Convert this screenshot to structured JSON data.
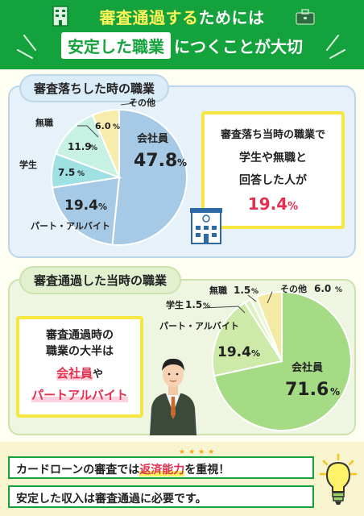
{
  "header": {
    "title_highlight": "審査通過する",
    "title_line1_rest": "ためには",
    "title_box": "安定した職業",
    "title_line2_rest": "につくことが大切"
  },
  "section1": {
    "title": "審査落ちした時の職業",
    "chart_data": {
      "type": "pie",
      "slices": [
        {
          "label": "会社員",
          "value": 47.8,
          "color": "#a6c9e6"
        },
        {
          "label": "パート・アルバイト",
          "value": 19.4,
          "color": "#a6c9e6"
        },
        {
          "label": "学生",
          "value": 7.5,
          "color": "#9fe0e3"
        },
        {
          "label": "無職",
          "value": 11.9,
          "color": "#c7f2e3"
        },
        {
          "label": "その他",
          "value": 6.0,
          "color": "#f7ecac"
        }
      ],
      "labels": {
        "kaishain": "会社員",
        "kaishain_val": "47.8",
        "part": "パート・アルバイト",
        "part_val": "19.4",
        "student": "学生",
        "student_val": "7.5",
        "mushoku": "無職",
        "mushoku_val": "11.9",
        "other": "その他",
        "other_val": "6.0",
        "unit": "%"
      }
    },
    "callout": {
      "line1": "審査落ち当時の職業で",
      "line2": "学生や無職と",
      "line3": "回答した人が",
      "value": "19.4",
      "unit": "%"
    }
  },
  "section2": {
    "title": "審査通過した当時の職業",
    "chart_data": {
      "type": "pie",
      "slices": [
        {
          "label": "会社員",
          "value": 71.6,
          "color": "#a6db86"
        },
        {
          "label": "パート・アルバイト",
          "value": 19.4,
          "color": "#cdeaa8"
        },
        {
          "label": "学生",
          "value": 1.5,
          "color": "#dff0c4"
        },
        {
          "label": "無職",
          "value": 1.5,
          "color": "#eaf5d6"
        },
        {
          "label": "その他",
          "value": 6.0,
          "color": "#f3eaa6"
        }
      ],
      "labels": {
        "kaishain": "会社員",
        "kaishain_val": "71.6",
        "part": "パート・アルバイト",
        "part_val": "19.4",
        "student": "学生",
        "student_val": "1.5",
        "mushoku": "無職",
        "mushoku_val": "1.5",
        "other": "その他",
        "other_val": "6.0",
        "unit": "%"
      }
    },
    "callout": {
      "line1": "審査通過時の",
      "line2": "職業の大半は",
      "hl1": "会社員",
      "suffix1": "や",
      "hl2": "パートアルバイト"
    }
  },
  "footer": {
    "line1_pre": "カードローンの審査では",
    "line1_accent": "返済能力",
    "line1_post": "を重視！",
    "line2": "安定した収入は審査通過に必要です。"
  },
  "icons": {
    "building": "building-icon",
    "briefcase": "briefcase-icon",
    "office": "office-building-icon",
    "businessman": "businessman-illustration",
    "lightbulb": "lightbulb-icon"
  },
  "colors": {
    "green": "#14a23c",
    "red": "#e2304f",
    "yellow": "#f5e642"
  }
}
